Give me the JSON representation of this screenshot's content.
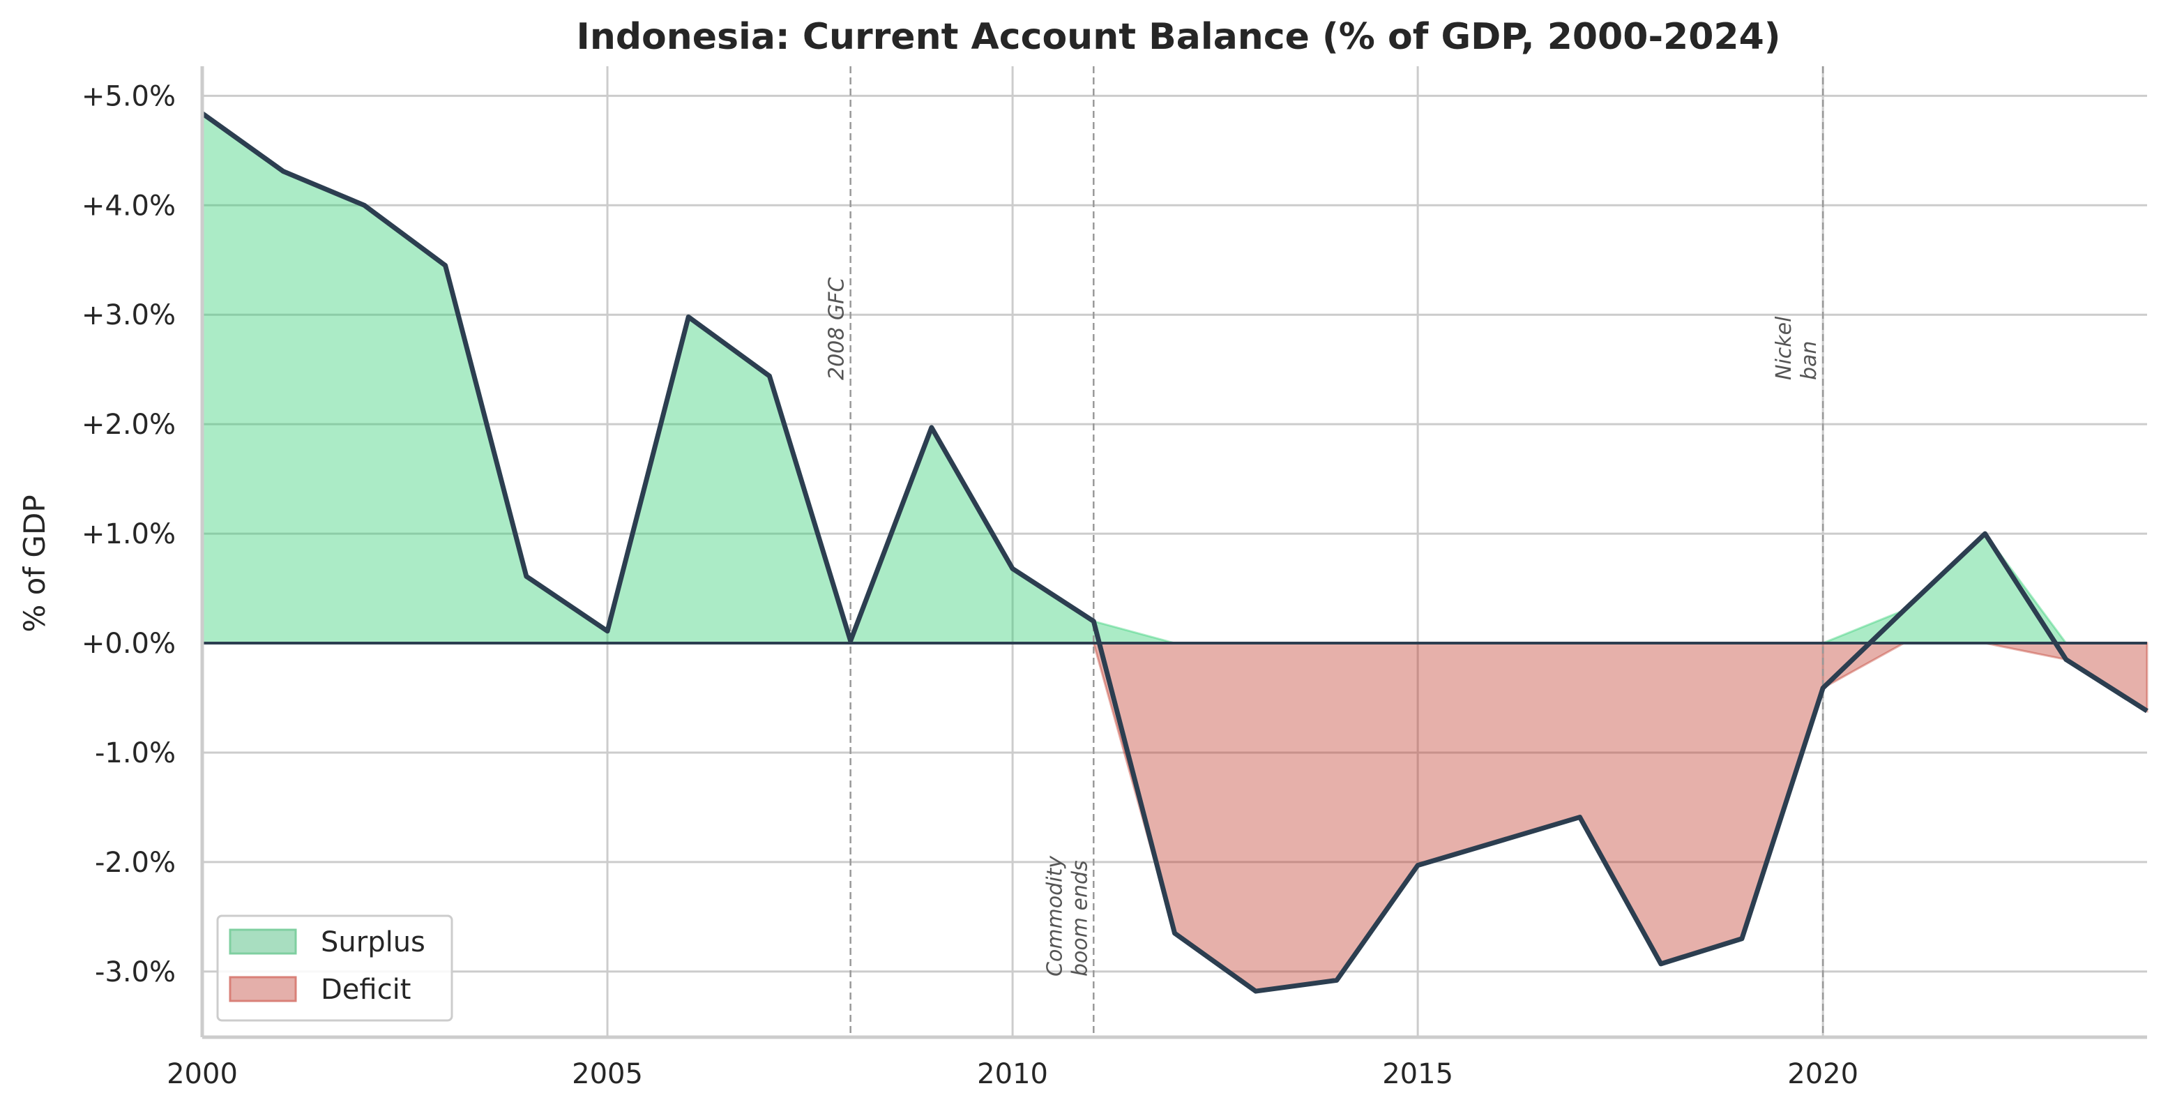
{
  "chart_data": {
    "type": "area",
    "title": "Indonesia: Current Account Balance (% of GDP, 2000-2024)",
    "xlabel": "",
    "ylabel": "% of GDP",
    "x": [
      2000,
      2001,
      2002,
      2003,
      2004,
      2005,
      2006,
      2007,
      2008,
      2009,
      2010,
      2011,
      2012,
      2013,
      2014,
      2015,
      2016,
      2017,
      2018,
      2019,
      2020,
      2021,
      2022,
      2023,
      2024
    ],
    "series": [
      {
        "name": "Current Account Balance (% of GDP)",
        "values": [
          4.84,
          4.31,
          4.0,
          3.45,
          0.61,
          0.11,
          2.98,
          2.44,
          0.02,
          1.97,
          0.68,
          0.2,
          -2.65,
          -3.18,
          -3.08,
          -2.03,
          -1.81,
          -1.59,
          -2.93,
          -2.7,
          -0.41,
          0.3,
          1.0,
          -0.15,
          -0.62
        ]
      }
    ],
    "legend": [
      {
        "label": "Surplus",
        "color": "#a8dec0",
        "edge": "#7fcfa0"
      },
      {
        "label": "Deficit",
        "color": "#e4afaa",
        "edge": "#d98078"
      }
    ],
    "legend_position": "lower left",
    "xlim": [
      2000,
      2024
    ],
    "ylim": [
      -3.6,
      5.27
    ],
    "xticks": [
      2000,
      2005,
      2010,
      2015,
      2020
    ],
    "xtick_labels": [
      "2000",
      "2005",
      "2010",
      "2015",
      "2020"
    ],
    "yticks": [
      5,
      4,
      3,
      2,
      1,
      0,
      -1,
      -2,
      -3
    ],
    "ytick_labels": [
      "+5.0%",
      "+4.0%",
      "+3.0%",
      "+2.0%",
      "+1.0%",
      "+0.0%",
      "-1.0%",
      "-2.0%",
      "-3.0%"
    ],
    "grid": true,
    "annotations": [
      {
        "x": 2008,
        "lines": [
          "2008 GFC"
        ],
        "position": "upper"
      },
      {
        "x": 2011,
        "lines": [
          "Commodity",
          "boom ends"
        ],
        "position": "lower"
      },
      {
        "x": 2020,
        "lines": [
          "Nickel",
          "ban"
        ],
        "position": "upper"
      }
    ],
    "colors": {
      "line": "#2c3e50",
      "surplus_fill": "#a8dec0",
      "deficit_fill": "#e4afaa",
      "grid": "#cccccc",
      "zero_line": "#2c3e50",
      "event_line": "#999999"
    }
  }
}
